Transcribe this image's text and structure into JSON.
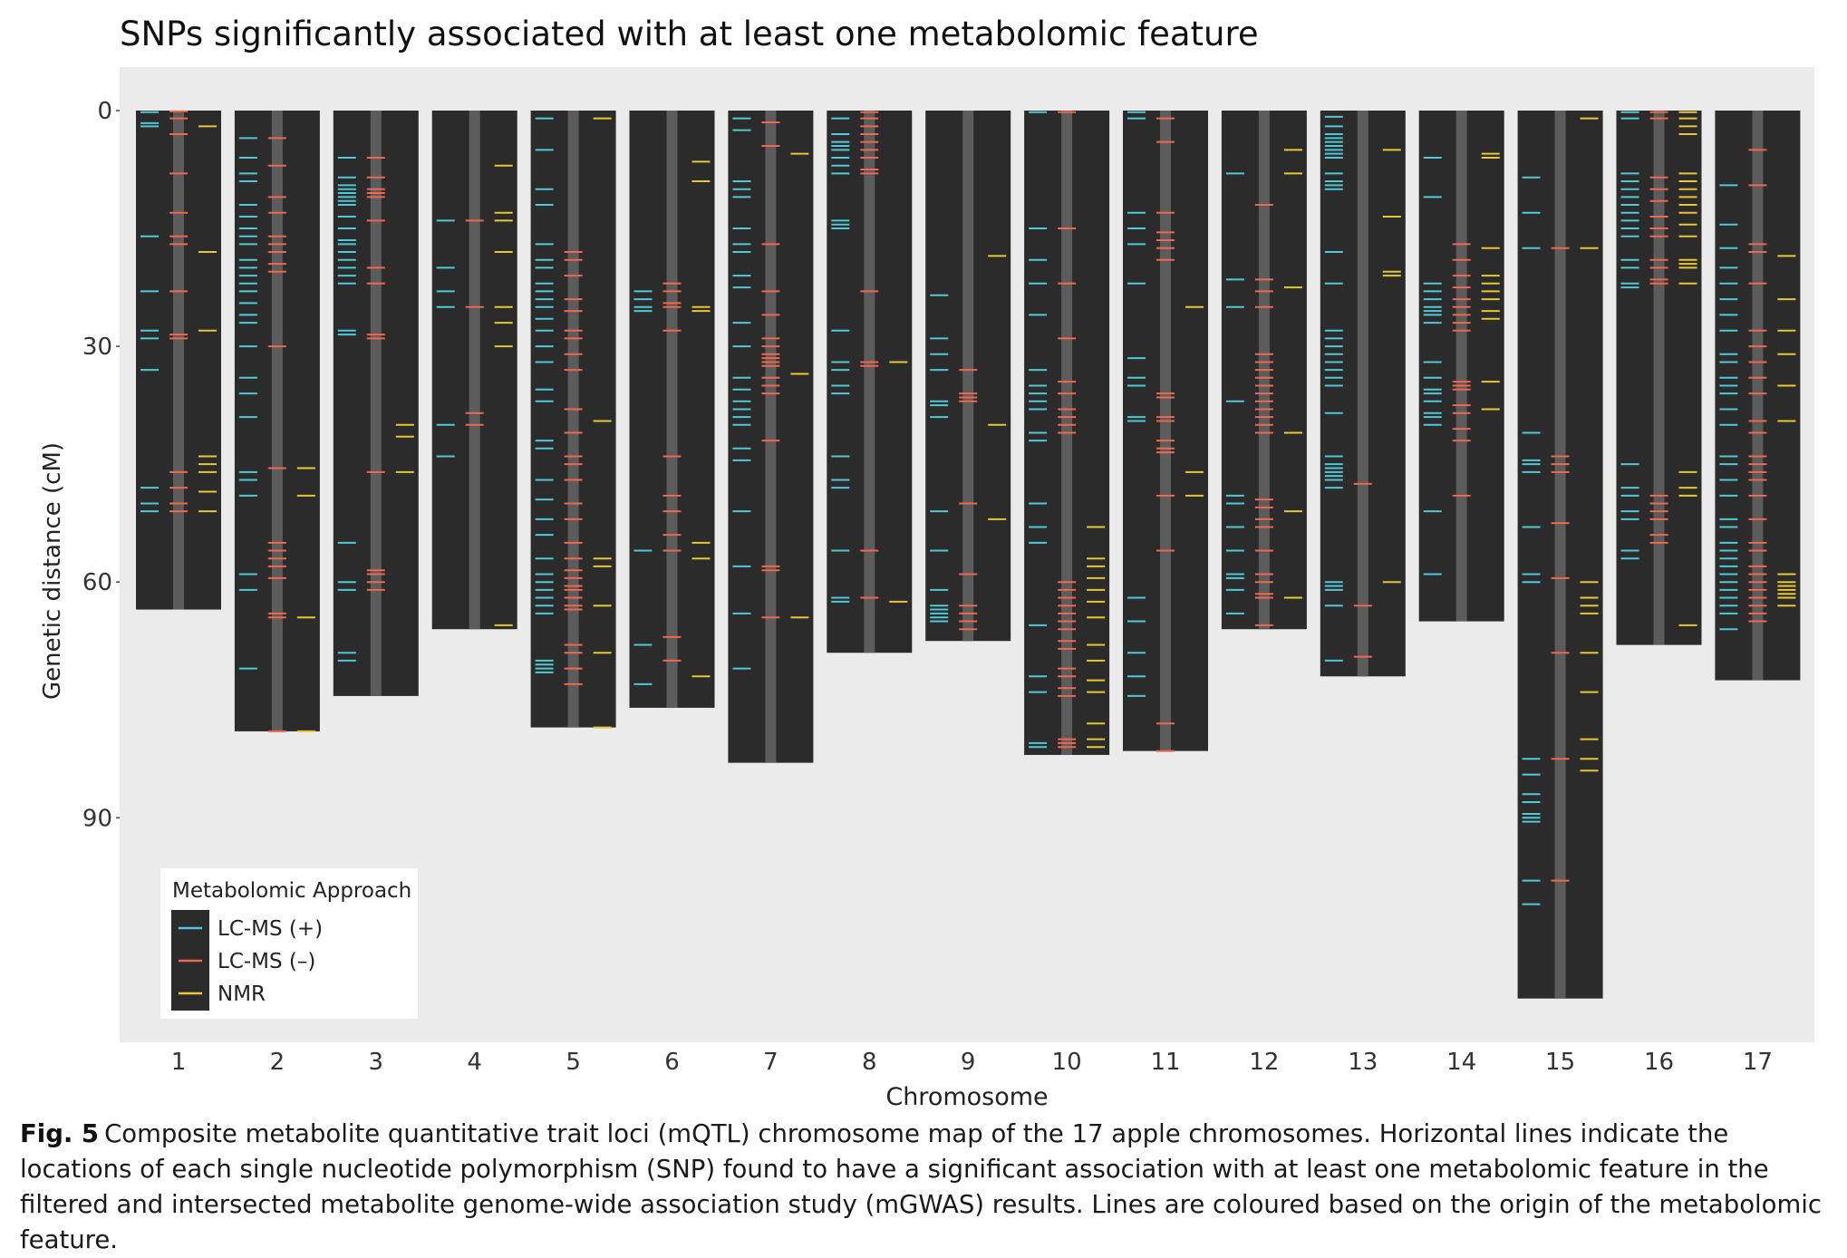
{
  "chart_data": {
    "type": "chromosome-map",
    "title": "SNPs significantly associated with at least one metabolomic feature",
    "xlabel": "Chromosome",
    "ylabel": "Genetic distance (cM)",
    "y_axis": {
      "reversed": true,
      "ticks": [
        0,
        30,
        60,
        90
      ],
      "range": [
        0,
        117
      ]
    },
    "legend": {
      "title": "Metabolomic Approach",
      "placement": "bottom-left",
      "entries": [
        {
          "label": "LC-MS (+)",
          "color": "#4FC9D6"
        },
        {
          "label": "LC-MS (–)",
          "color": "#F0674F"
        },
        {
          "label": "NMR",
          "color": "#E8C832"
        }
      ]
    },
    "colors": {
      "panel": "#EBEBEB",
      "chromosome": "#2B2B2B",
      "centerline": "#5C5C5C"
    },
    "chromosomes": [
      {
        "label": "1",
        "length": 63.5,
        "lcms_pos": [
          0.2,
          1.6,
          2,
          16,
          23,
          28,
          29,
          33,
          48,
          50,
          51
        ],
        "lcms_neg": [
          0.1,
          1,
          3,
          8,
          13,
          16,
          17,
          23,
          28.5,
          29,
          46,
          48,
          50,
          51
        ],
        "nmr": [
          2,
          18,
          28,
          44,
          45,
          46,
          48.5,
          51
        ]
      },
      {
        "label": "2",
        "length": 79,
        "lcms_pos": [
          3.5,
          6,
          8,
          9,
          12,
          13.5,
          15,
          16,
          17,
          19,
          20,
          21,
          22,
          23,
          24.5,
          26,
          27,
          30,
          34,
          36,
          39,
          46,
          47,
          49,
          59,
          61,
          71
        ],
        "lcms_neg": [
          3.5,
          7,
          11,
          13,
          16,
          17,
          18,
          19.5,
          20.5,
          30,
          45.5,
          55,
          56,
          57,
          58,
          59.5,
          64,
          64.5,
          79
        ],
        "nmr": [
          45.5,
          49,
          64.5,
          79
        ]
      },
      {
        "label": "3",
        "length": 74.5,
        "lcms_pos": [
          6,
          8.5,
          9.5,
          10,
          10.5,
          11,
          11.5,
          12,
          13.5,
          15,
          16.5,
          17,
          18,
          19,
          20,
          21,
          22,
          28,
          28.5,
          55,
          60,
          61,
          69,
          70
        ],
        "lcms_neg": [
          6,
          8.5,
          10,
          10.5,
          11,
          14,
          20,
          22,
          28.5,
          29,
          46,
          58.5,
          59,
          60,
          61
        ],
        "nmr": [
          40,
          41.5,
          46
        ]
      },
      {
        "label": "4",
        "length": 66,
        "lcms_pos": [
          14,
          20,
          23,
          25,
          40,
          44
        ],
        "lcms_neg": [
          14,
          25,
          38.5,
          40
        ],
        "nmr": [
          7,
          13,
          14,
          18,
          25,
          27,
          30,
          65.5
        ]
      },
      {
        "label": "5",
        "length": 78.5,
        "lcms_pos": [
          1,
          5,
          10,
          12,
          17,
          19,
          20,
          22,
          23,
          24,
          25,
          26.5,
          28,
          30,
          32,
          35.5,
          37,
          42,
          43,
          47,
          49.5,
          52,
          54,
          57,
          59,
          60,
          61,
          62,
          63,
          64,
          70,
          70.5,
          71,
          71.5
        ],
        "lcms_neg": [
          18,
          19,
          21,
          24,
          25.5,
          28,
          29,
          31,
          33,
          38,
          41,
          44,
          45,
          47,
          50,
          52,
          55,
          57,
          58.5,
          59.5,
          60.5,
          61,
          62,
          63,
          63.5,
          68,
          69,
          71,
          73
        ],
        "nmr": [
          1,
          39.5,
          57,
          58,
          63,
          69,
          78.5
        ]
      },
      {
        "label": "6",
        "length": 76,
        "lcms_pos": [
          23,
          24,
          25,
          25.5,
          56,
          68,
          73
        ],
        "lcms_neg": [
          22,
          23,
          24.5,
          25,
          28,
          44,
          49,
          51,
          54,
          56,
          67,
          70
        ],
        "nmr": [
          6.5,
          9,
          25,
          25.5,
          55,
          57,
          72
        ]
      },
      {
        "label": "7",
        "length": 83,
        "lcms_pos": [
          1,
          2.5,
          9,
          10,
          11,
          15,
          17,
          18,
          21,
          22.5,
          27,
          30,
          34,
          35.5,
          37,
          38,
          39,
          40,
          43,
          44.5,
          51,
          58,
          64,
          71
        ],
        "lcms_neg": [
          1.5,
          4.5,
          17,
          23,
          26,
          29,
          30,
          31,
          31.5,
          32,
          32.5,
          34,
          35,
          36,
          42,
          58,
          58.5,
          64.5
        ],
        "nmr": [
          5.5,
          33.5,
          64.5
        ]
      },
      {
        "label": "8",
        "length": 69,
        "lcms_pos": [
          1,
          3,
          4,
          4.5,
          5,
          6,
          7,
          8,
          14,
          14.5,
          15,
          28,
          32,
          33,
          35,
          36,
          44,
          47,
          48,
          56,
          62,
          62.5
        ],
        "lcms_neg": [
          0.2,
          1,
          2,
          3,
          4,
          5,
          6,
          7.5,
          8,
          23,
          32,
          32.5,
          56,
          62
        ],
        "nmr": [
          32,
          62.5
        ]
      },
      {
        "label": "9",
        "length": 67.5,
        "lcms_pos": [
          23.5,
          29,
          31,
          33,
          37,
          37.5,
          39,
          51,
          56,
          61,
          63,
          63.5,
          64,
          64.5,
          65
        ],
        "lcms_neg": [
          33,
          36,
          36.5,
          37,
          50,
          59,
          63,
          64,
          65,
          66
        ],
        "nmr": [
          18.5,
          40,
          52
        ]
      },
      {
        "label": "10",
        "length": 82,
        "lcms_pos": [
          0.2,
          15,
          19,
          22,
          26,
          33,
          35,
          36,
          37,
          38,
          41,
          42,
          50,
          53,
          55,
          65.5,
          72,
          74,
          80.5,
          81
        ],
        "lcms_neg": [
          0.2,
          15,
          22,
          29,
          34.5,
          36,
          38,
          39,
          40,
          41,
          60,
          61,
          62,
          63,
          64,
          65,
          66,
          67.5,
          68.5,
          71,
          72,
          73.5,
          74.5,
          80,
          80.5,
          81
        ],
        "nmr": [
          53,
          57,
          58,
          59.5,
          61,
          62.5,
          64.5,
          68,
          70,
          72.5,
          74,
          78,
          80,
          81
        ]
      },
      {
        "label": "11",
        "length": 81.5,
        "lcms_pos": [
          0.2,
          1,
          13,
          15,
          17,
          22,
          31.5,
          34,
          35,
          39,
          39.5,
          62,
          65,
          69,
          72,
          74.5
        ],
        "lcms_neg": [
          1,
          4,
          13,
          15.5,
          16.5,
          17.5,
          19,
          36,
          36.5,
          39,
          39.5,
          42,
          43,
          43.5,
          49,
          56,
          78,
          81.5
        ],
        "nmr": [
          25,
          46,
          49
        ]
      },
      {
        "label": "12",
        "length": 66,
        "lcms_pos": [
          8,
          21.5,
          25,
          37,
          49,
          50,
          53,
          56,
          59,
          59.5,
          61,
          64
        ],
        "lcms_neg": [
          12,
          21.5,
          23,
          25,
          31,
          32,
          33,
          34,
          35,
          36,
          37,
          38,
          39,
          40,
          41,
          49.5,
          50.5,
          52,
          53,
          56,
          59,
          60,
          61.5,
          62,
          65.5
        ],
        "nmr": [
          5,
          8,
          22.5,
          41,
          51,
          62
        ]
      },
      {
        "label": "13",
        "length": 72,
        "lcms_pos": [
          0.8,
          2,
          3,
          3.5,
          4,
          4.5,
          5,
          5.5,
          6,
          8,
          9,
          9.5,
          10,
          18,
          22,
          28,
          29,
          30,
          31,
          32,
          33,
          34,
          35,
          38.5,
          44,
          45,
          45.5,
          46,
          46.5,
          47,
          48,
          60,
          60.5,
          61,
          63,
          70
        ],
        "lcms_neg": [
          47.5,
          63,
          69.5
        ],
        "nmr": [
          5,
          13.5,
          20.5,
          21,
          60
        ]
      },
      {
        "label": "14",
        "length": 65,
        "lcms_pos": [
          6,
          11,
          22,
          23,
          24,
          25,
          25.5,
          26,
          27,
          32,
          34,
          35.5,
          36,
          37,
          38.5,
          39,
          40,
          51,
          59
        ],
        "lcms_neg": [
          17,
          19,
          21,
          22.5,
          24,
          25,
          26,
          27,
          28,
          34.5,
          35,
          35.5,
          37.5,
          38.5,
          40.5,
          42,
          49
        ],
        "nmr": [
          5.5,
          6,
          17.5,
          21,
          22,
          23,
          24,
          25.5,
          26.5,
          34.5,
          38
        ]
      },
      {
        "label": "15",
        "length": 113,
        "lcms_pos": [
          8.5,
          13,
          17.5,
          41,
          44.5,
          45,
          46,
          53,
          59,
          60,
          82.5,
          84.5,
          87,
          88,
          89.5,
          90,
          90.5,
          98,
          101
        ],
        "lcms_neg": [
          17.5,
          44,
          45,
          46,
          52.5,
          59.5,
          69,
          82.5,
          98
        ],
        "nmr": [
          1,
          17.5,
          60,
          62,
          63,
          64,
          69,
          74,
          80,
          82.5,
          84
        ]
      },
      {
        "label": "16",
        "length": 68,
        "lcms_pos": [
          0.2,
          1,
          8,
          9,
          10,
          11,
          12,
          13,
          14,
          15,
          16,
          19,
          20,
          22,
          22.5,
          45,
          48,
          49,
          51,
          52,
          56,
          57
        ],
        "lcms_neg": [
          0.2,
          1,
          8.5,
          10,
          11.5,
          13.5,
          15,
          16,
          19,
          20,
          21.5,
          22,
          49,
          50,
          51,
          52,
          54,
          55
        ],
        "nmr": [
          0.2,
          1,
          2,
          3,
          8,
          9,
          10,
          11,
          12,
          13,
          14.5,
          16,
          19,
          19.5,
          20,
          22,
          46,
          48,
          49,
          65.5
        ]
      },
      {
        "label": "17",
        "length": 72.5,
        "lcms_pos": [
          9.5,
          14.5,
          17.5,
          20,
          22,
          24,
          26,
          28,
          31,
          32,
          34,
          35,
          36,
          38,
          40,
          44,
          45,
          47,
          49,
          52,
          53,
          55,
          56,
          57,
          58,
          59,
          60,
          61,
          62,
          63,
          64,
          66
        ],
        "lcms_neg": [
          5,
          9.5,
          17,
          18,
          22,
          28,
          30,
          32,
          34,
          36,
          39.5,
          41,
          44,
          45,
          46,
          47,
          49,
          52,
          55,
          56,
          58,
          59,
          60,
          61,
          62,
          63,
          64,
          65
        ],
        "nmr": [
          18.5,
          24,
          28,
          31,
          35,
          39.5,
          59,
          60,
          60.5,
          61,
          61.5,
          62,
          63
        ]
      }
    ]
  },
  "caption": {
    "label": "Fig. 5",
    "text": "Composite metabolite quantitative trait loci (mQTL) chromosome map of the 17 apple chromosomes. Horizontal lines indicate the locations of each single nucleotide polymorphism (SNP) found to have a significant association with at least one metabolomic feature in the filtered and intersected metabolite genome-wide association study (mGWAS) results. Lines are coloured based on the origin of the metabolomic feature."
  }
}
